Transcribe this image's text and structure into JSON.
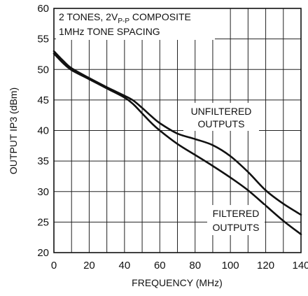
{
  "chart_data": {
    "type": "line",
    "xlabel": "FREQUENCY (MHz)",
    "ylabel": "OUTPUT IP3 (dBm)",
    "xlim": [
      0,
      140
    ],
    "ylim": [
      20,
      60
    ],
    "x_ticks": [
      "0",
      "20",
      "40",
      "60",
      "80",
      "100",
      "120",
      "140"
    ],
    "y_ticks": [
      "20",
      "25",
      "30",
      "35",
      "40",
      "45",
      "50",
      "55",
      "60"
    ],
    "grid": true,
    "annotation_lines": [
      "2 TONES, 2V",
      "P-P",
      " COMPOSITE",
      "1MHz TONE SPACING"
    ],
    "series": [
      {
        "name": "UNFILTERED OUTPUTS",
        "label_lines": [
          "UNFILTERED",
          "OUTPUTS"
        ],
        "x": [
          0,
          5,
          10,
          20,
          30,
          40,
          45,
          50,
          55,
          60,
          70,
          80,
          90,
          100,
          110,
          120,
          130,
          140
        ],
        "y": [
          53.0,
          51.5,
          50.2,
          48.6,
          47.1,
          45.7,
          44.9,
          43.7,
          42.4,
          41.2,
          39.5,
          38.6,
          37.6,
          35.8,
          33.2,
          30.2,
          28.0,
          26.2
        ]
      },
      {
        "name": "FILTERED OUTPUTS",
        "label_lines": [
          "FILTERED",
          "OUTPUTS"
        ],
        "x": [
          0,
          5,
          10,
          20,
          30,
          40,
          45,
          50,
          55,
          60,
          70,
          80,
          90,
          100,
          110,
          120,
          130,
          140
        ],
        "y": [
          52.6,
          51.1,
          49.9,
          48.4,
          46.9,
          45.4,
          44.3,
          42.8,
          41.3,
          40.0,
          37.8,
          36.0,
          34.2,
          32.3,
          30.2,
          27.7,
          25.2,
          23.0
        ]
      }
    ]
  }
}
